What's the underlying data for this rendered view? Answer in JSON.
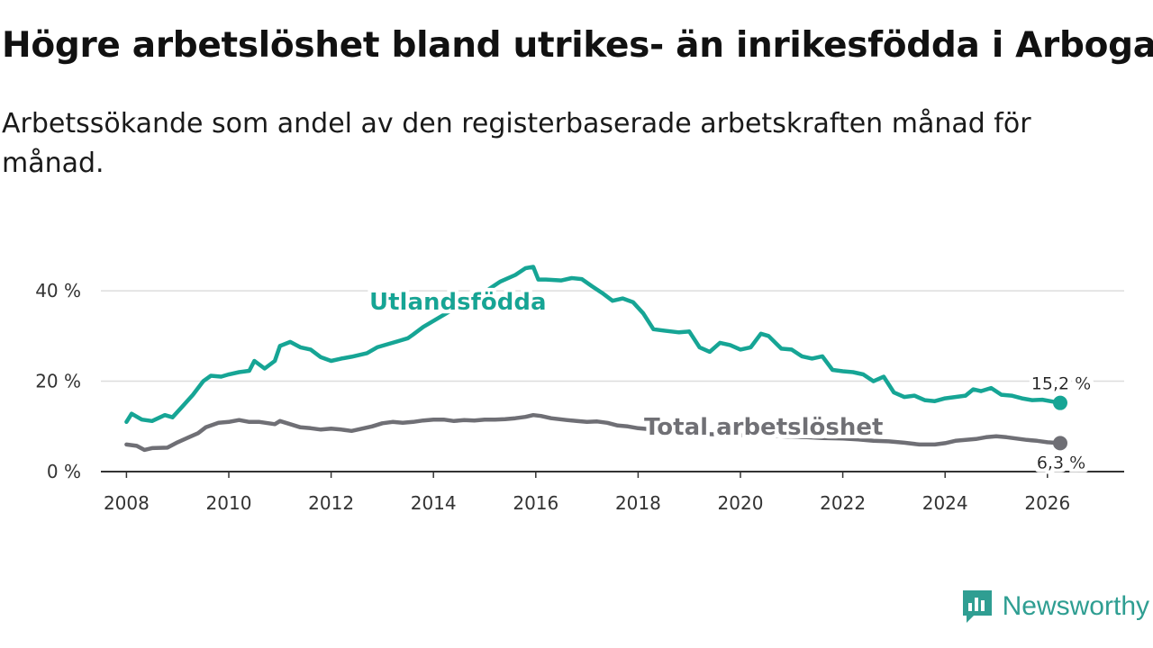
{
  "header": {
    "title": "Högre arbetslöshet bland utrikes- än inrikesfödda i Arboga",
    "subtitle": "Arbetssökande som andel av den registerbaserade arbetskraften månad för månad."
  },
  "brand": {
    "name": "Newsworthy"
  },
  "colors": {
    "foreign": "#16a595",
    "total": "#6f6f75",
    "grid": "#dddddd",
    "axis": "#333333",
    "brand": "#2f9e92"
  },
  "chart_data": {
    "type": "line",
    "title": "Högre arbetslöshet bland utrikes- än inrikesfödda i Arboga",
    "subtitle": "Arbetssökande som andel av den registerbaserade arbetskraften månad för månad.",
    "xlabel": "",
    "ylabel": "",
    "xlim": [
      2007.5,
      2027.5
    ],
    "ylim": [
      0,
      45
    ],
    "x_ticks": [
      2008,
      2010,
      2012,
      2014,
      2016,
      2018,
      2020,
      2022,
      2024,
      2026
    ],
    "x_tick_labels": [
      "2008",
      "2010",
      "2012",
      "2014",
      "2016",
      "2018",
      "2020",
      "2022",
      "2024",
      "2026"
    ],
    "y_ticks": [
      0,
      20,
      40
    ],
    "y_tick_labels": [
      "0 %",
      "20 %",
      "40 %"
    ],
    "grid": true,
    "series": [
      {
        "name": "Utlandsfödda",
        "end_label": "15,2 %",
        "x": [
          2008.0,
          2008.1,
          2008.3,
          2008.5,
          2008.75,
          2008.9,
          2009.1,
          2009.3,
          2009.5,
          2009.65,
          2009.85,
          2010.0,
          2010.2,
          2010.4,
          2010.5,
          2010.7,
          2010.9,
          2011.0,
          2011.2,
          2011.4,
          2011.6,
          2011.8,
          2012.0,
          2012.2,
          2012.4,
          2012.7,
          2012.9,
          2013.2,
          2013.35,
          2013.5,
          2013.6,
          2013.8,
          2014.1,
          2014.4,
          2014.7,
          2014.9,
          2015.1,
          2015.3,
          2015.6,
          2015.8,
          2015.95,
          2016.05,
          2016.2,
          2016.5,
          2016.7,
          2016.9,
          2017.1,
          2017.3,
          2017.5,
          2017.7,
          2017.9,
          2018.1,
          2018.3,
          2018.5,
          2018.8,
          2019.0,
          2019.2,
          2019.4,
          2019.6,
          2019.8,
          2020.0,
          2020.2,
          2020.4,
          2020.55,
          2020.8,
          2021.0,
          2021.2,
          2021.4,
          2021.6,
          2021.8,
          2022.0,
          2022.2,
          2022.4,
          2022.6,
          2022.8,
          2023.0,
          2023.2,
          2023.4,
          2023.6,
          2023.8,
          2024.0,
          2024.2,
          2024.4,
          2024.55,
          2024.7,
          2024.9,
          2025.1,
          2025.3,
          2025.5,
          2025.7,
          2025.9,
          2026.1,
          2026.25
        ],
        "values": [
          11.0,
          12.8,
          11.5,
          11.2,
          12.5,
          12.0,
          14.5,
          17.0,
          20.0,
          21.2,
          21.0,
          21.5,
          22.0,
          22.3,
          24.5,
          22.8,
          24.5,
          27.8,
          28.7,
          27.5,
          27.0,
          25.3,
          24.5,
          25.0,
          25.4,
          26.2,
          27.5,
          28.5,
          29.0,
          29.5,
          30.3,
          32.0,
          34.0,
          36.0,
          37.5,
          38.5,
          40.5,
          42.0,
          43.5,
          45.0,
          45.3,
          42.5,
          42.5,
          42.3,
          42.8,
          42.6,
          41.0,
          39.5,
          37.8,
          38.3,
          37.5,
          35.0,
          31.5,
          31.2,
          30.8,
          31.0,
          27.5,
          26.5,
          28.5,
          28.0,
          27.0,
          27.5,
          30.5,
          30.0,
          27.2,
          27.0,
          25.5,
          25.0,
          25.5,
          22.5,
          22.2,
          22.0,
          21.5,
          20.0,
          21.0,
          17.5,
          16.5,
          16.8,
          15.8,
          15.6,
          16.2,
          16.5,
          16.8,
          18.2,
          17.8,
          18.5,
          17.0,
          16.8,
          16.2,
          15.8,
          15.9,
          15.5,
          15.2
        ]
      },
      {
        "name": "Total arbetslöshet",
        "end_label": "6,3 %",
        "x": [
          2008.0,
          2008.2,
          2008.35,
          2008.5,
          2008.8,
          2009.0,
          2009.2,
          2009.4,
          2009.55,
          2009.8,
          2010.0,
          2010.2,
          2010.4,
          2010.6,
          2010.9,
          2011.0,
          2011.2,
          2011.4,
          2011.6,
          2011.8,
          2012.0,
          2012.2,
          2012.4,
          2012.6,
          2012.8,
          2013.0,
          2013.2,
          2013.4,
          2013.6,
          2013.8,
          2014.0,
          2014.2,
          2014.4,
          2014.6,
          2014.8,
          2015.0,
          2015.2,
          2015.4,
          2015.6,
          2015.8,
          2015.95,
          2016.1,
          2016.3,
          2016.6,
          2016.8,
          2017.0,
          2017.2,
          2017.4,
          2017.6,
          2017.8,
          2018.0,
          2018.3,
          2018.6,
          2019.0,
          2019.3,
          2019.6,
          2020.0,
          2020.3,
          2020.6,
          2021.0,
          2021.3,
          2021.6,
          2022.0,
          2022.3,
          2022.6,
          2022.9,
          2023.2,
          2023.5,
          2023.8,
          2024.0,
          2024.2,
          2024.4,
          2024.6,
          2024.8,
          2025.0,
          2025.2,
          2025.4,
          2025.6,
          2025.8,
          2026.0,
          2026.25
        ],
        "values": [
          6.0,
          5.7,
          4.8,
          5.2,
          5.3,
          6.5,
          7.5,
          8.5,
          9.8,
          10.8,
          11.0,
          11.4,
          11.0,
          11.0,
          10.5,
          11.2,
          10.5,
          9.8,
          9.6,
          9.3,
          9.5,
          9.3,
          9.0,
          9.5,
          10.0,
          10.7,
          11.0,
          10.8,
          11.0,
          11.3,
          11.5,
          11.5,
          11.2,
          11.4,
          11.3,
          11.5,
          11.5,
          11.6,
          11.8,
          12.1,
          12.5,
          12.3,
          11.8,
          11.4,
          11.2,
          11.0,
          11.1,
          10.8,
          10.2,
          10.0,
          9.6,
          9.3,
          9.0,
          8.6,
          8.3,
          8.2,
          8.0,
          8.1,
          7.9,
          7.7,
          7.6,
          7.4,
          7.3,
          7.1,
          6.8,
          6.7,
          6.4,
          6.0,
          6.0,
          6.3,
          6.8,
          7.0,
          7.2,
          7.6,
          7.8,
          7.6,
          7.3,
          7.0,
          6.8,
          6.5,
          6.3
        ]
      }
    ]
  }
}
